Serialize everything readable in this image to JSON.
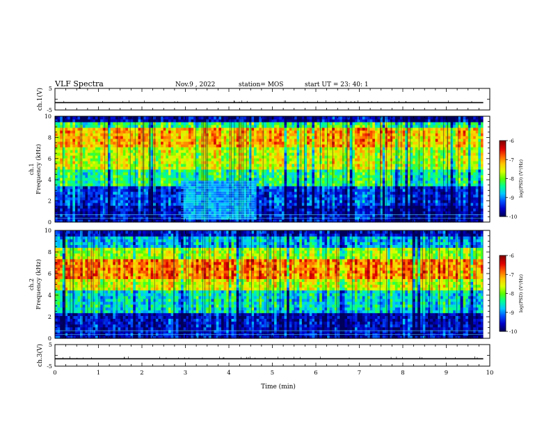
{
  "header": {
    "title": "VLF Spectra",
    "date": "Nov.9 , 2022",
    "station": "station= MOS",
    "start": "start UT = 23: 40: 1"
  },
  "time_axis": {
    "label": "Time (min)",
    "ticks": [
      "0",
      "1",
      "2",
      "3",
      "4",
      "5",
      "6",
      "7",
      "8",
      "9",
      "10"
    ]
  },
  "colorbar": {
    "label": "log(PSD) (V²/Hz)",
    "ticks": [
      "-6",
      "-7",
      "-8",
      "-9",
      "-10"
    ],
    "colors": [
      "#00005a",
      "#0000c8",
      "#0050ff",
      "#00c8ff",
      "#00ff96",
      "#5aff00",
      "#dcff00",
      "#ffc800",
      "#ff6400",
      "#e00000",
      "#8c0000"
    ]
  },
  "chart_data": [
    {
      "type": "line",
      "panel": "ch1-waveform",
      "ylabel": "ch.1(V)",
      "yticks": [
        "5",
        "-5"
      ],
      "ylim": [
        -5,
        5
      ],
      "xlim": [
        0,
        10
      ],
      "x_extent_min": [
        0,
        9.85
      ],
      "level_v": -1.6
    },
    {
      "type": "heatmap",
      "panel": "ch1-spectrogram",
      "ylabel": "ch.1\nFrequency (kHz)",
      "yticks": [
        "10",
        "8",
        "6",
        "4",
        "2",
        "0"
      ],
      "ylim": [
        0,
        10
      ],
      "xlim": [
        0,
        10
      ],
      "x_extent_min": [
        0,
        9.85
      ],
      "zlim": [
        -10,
        -6
      ],
      "bands": [
        {
          "f": [
            0,
            1.5
          ],
          "log_psd": -9.6
        },
        {
          "f": [
            1.5,
            3.5
          ],
          "log_psd": -9.3
        },
        {
          "f": [
            3.5,
            5.0
          ],
          "log_psd": -8.3
        },
        {
          "f": [
            5.0,
            7.0
          ],
          "log_psd": -7.6
        },
        {
          "f": [
            7.0,
            9.0
          ],
          "log_psd": -7.1
        },
        {
          "f": [
            9.0,
            9.6
          ],
          "log_psd": -8.2
        },
        {
          "f": [
            9.6,
            10
          ],
          "log_psd": -9.7
        }
      ],
      "features": [
        {
          "t": [
            2.9,
            4.6
          ],
          "f": [
            0.3,
            4.0
          ],
          "note": "narrowband lines"
        }
      ]
    },
    {
      "type": "heatmap",
      "panel": "ch2-spectrogram",
      "ylabel": "ch.2\nFrequency (kHz)",
      "yticks": [
        "10",
        "8",
        "6",
        "4",
        "2",
        "0"
      ],
      "ylim": [
        0,
        10
      ],
      "xlim": [
        0,
        10
      ],
      "x_extent_min": [
        0,
        9.85
      ],
      "zlim": [
        -10,
        -6
      ],
      "bands": [
        {
          "f": [
            0,
            2.5
          ],
          "log_psd": -9.6
        },
        {
          "f": [
            2.5,
            4.5
          ],
          "log_psd": -8.6
        },
        {
          "f": [
            4.5,
            5.5
          ],
          "log_psd": -7.6
        },
        {
          "f": [
            5.5,
            7.5
          ],
          "log_psd": -6.9
        },
        {
          "f": [
            7.5,
            8.5
          ],
          "log_psd": -7.8
        },
        {
          "f": [
            8.5,
            9.5
          ],
          "log_psd": -8.8
        },
        {
          "f": [
            9.5,
            10
          ],
          "log_psd": -9.6
        }
      ]
    },
    {
      "type": "line",
      "panel": "ch3-waveform",
      "ylabel": "ch.3(V)",
      "yticks": [
        "5",
        "-5"
      ],
      "ylim": [
        -5,
        5
      ],
      "xlim": [
        0,
        10
      ],
      "x_extent_min": [
        0,
        9.85
      ],
      "level_v": -1.6
    }
  ]
}
